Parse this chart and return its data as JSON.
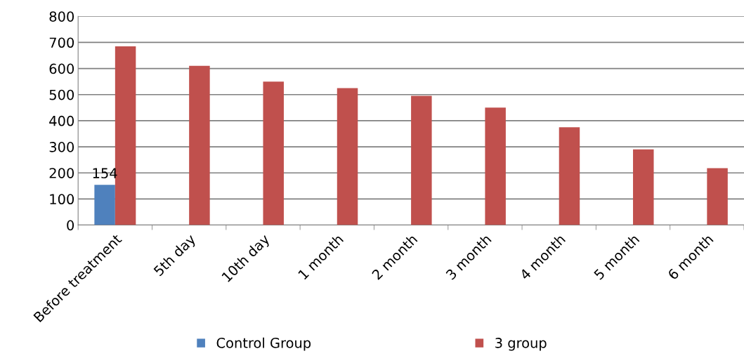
{
  "chart_data": {
    "type": "bar",
    "categories": [
      "Before treatment",
      "5th day",
      "10th day",
      "1 month",
      "2 month",
      "3 month",
      "4 month",
      "5 month",
      "6 month"
    ],
    "series": [
      {
        "name": "Control Group",
        "color": "#4f81bd",
        "values": [
          154,
          null,
          null,
          null,
          null,
          null,
          null,
          null,
          null
        ],
        "value_labels": [
          "154",
          null,
          null,
          null,
          null,
          null,
          null,
          null,
          null
        ]
      },
      {
        "name": "3 group",
        "color": "#c0504d",
        "values": [
          685,
          610,
          550,
          525,
          495,
          450,
          375,
          290,
          218
        ]
      }
    ],
    "ylim": [
      0,
      800
    ],
    "yticks": [
      0,
      100,
      200,
      300,
      400,
      500,
      600,
      700,
      800
    ],
    "grid": "y",
    "legend": "bottom"
  }
}
